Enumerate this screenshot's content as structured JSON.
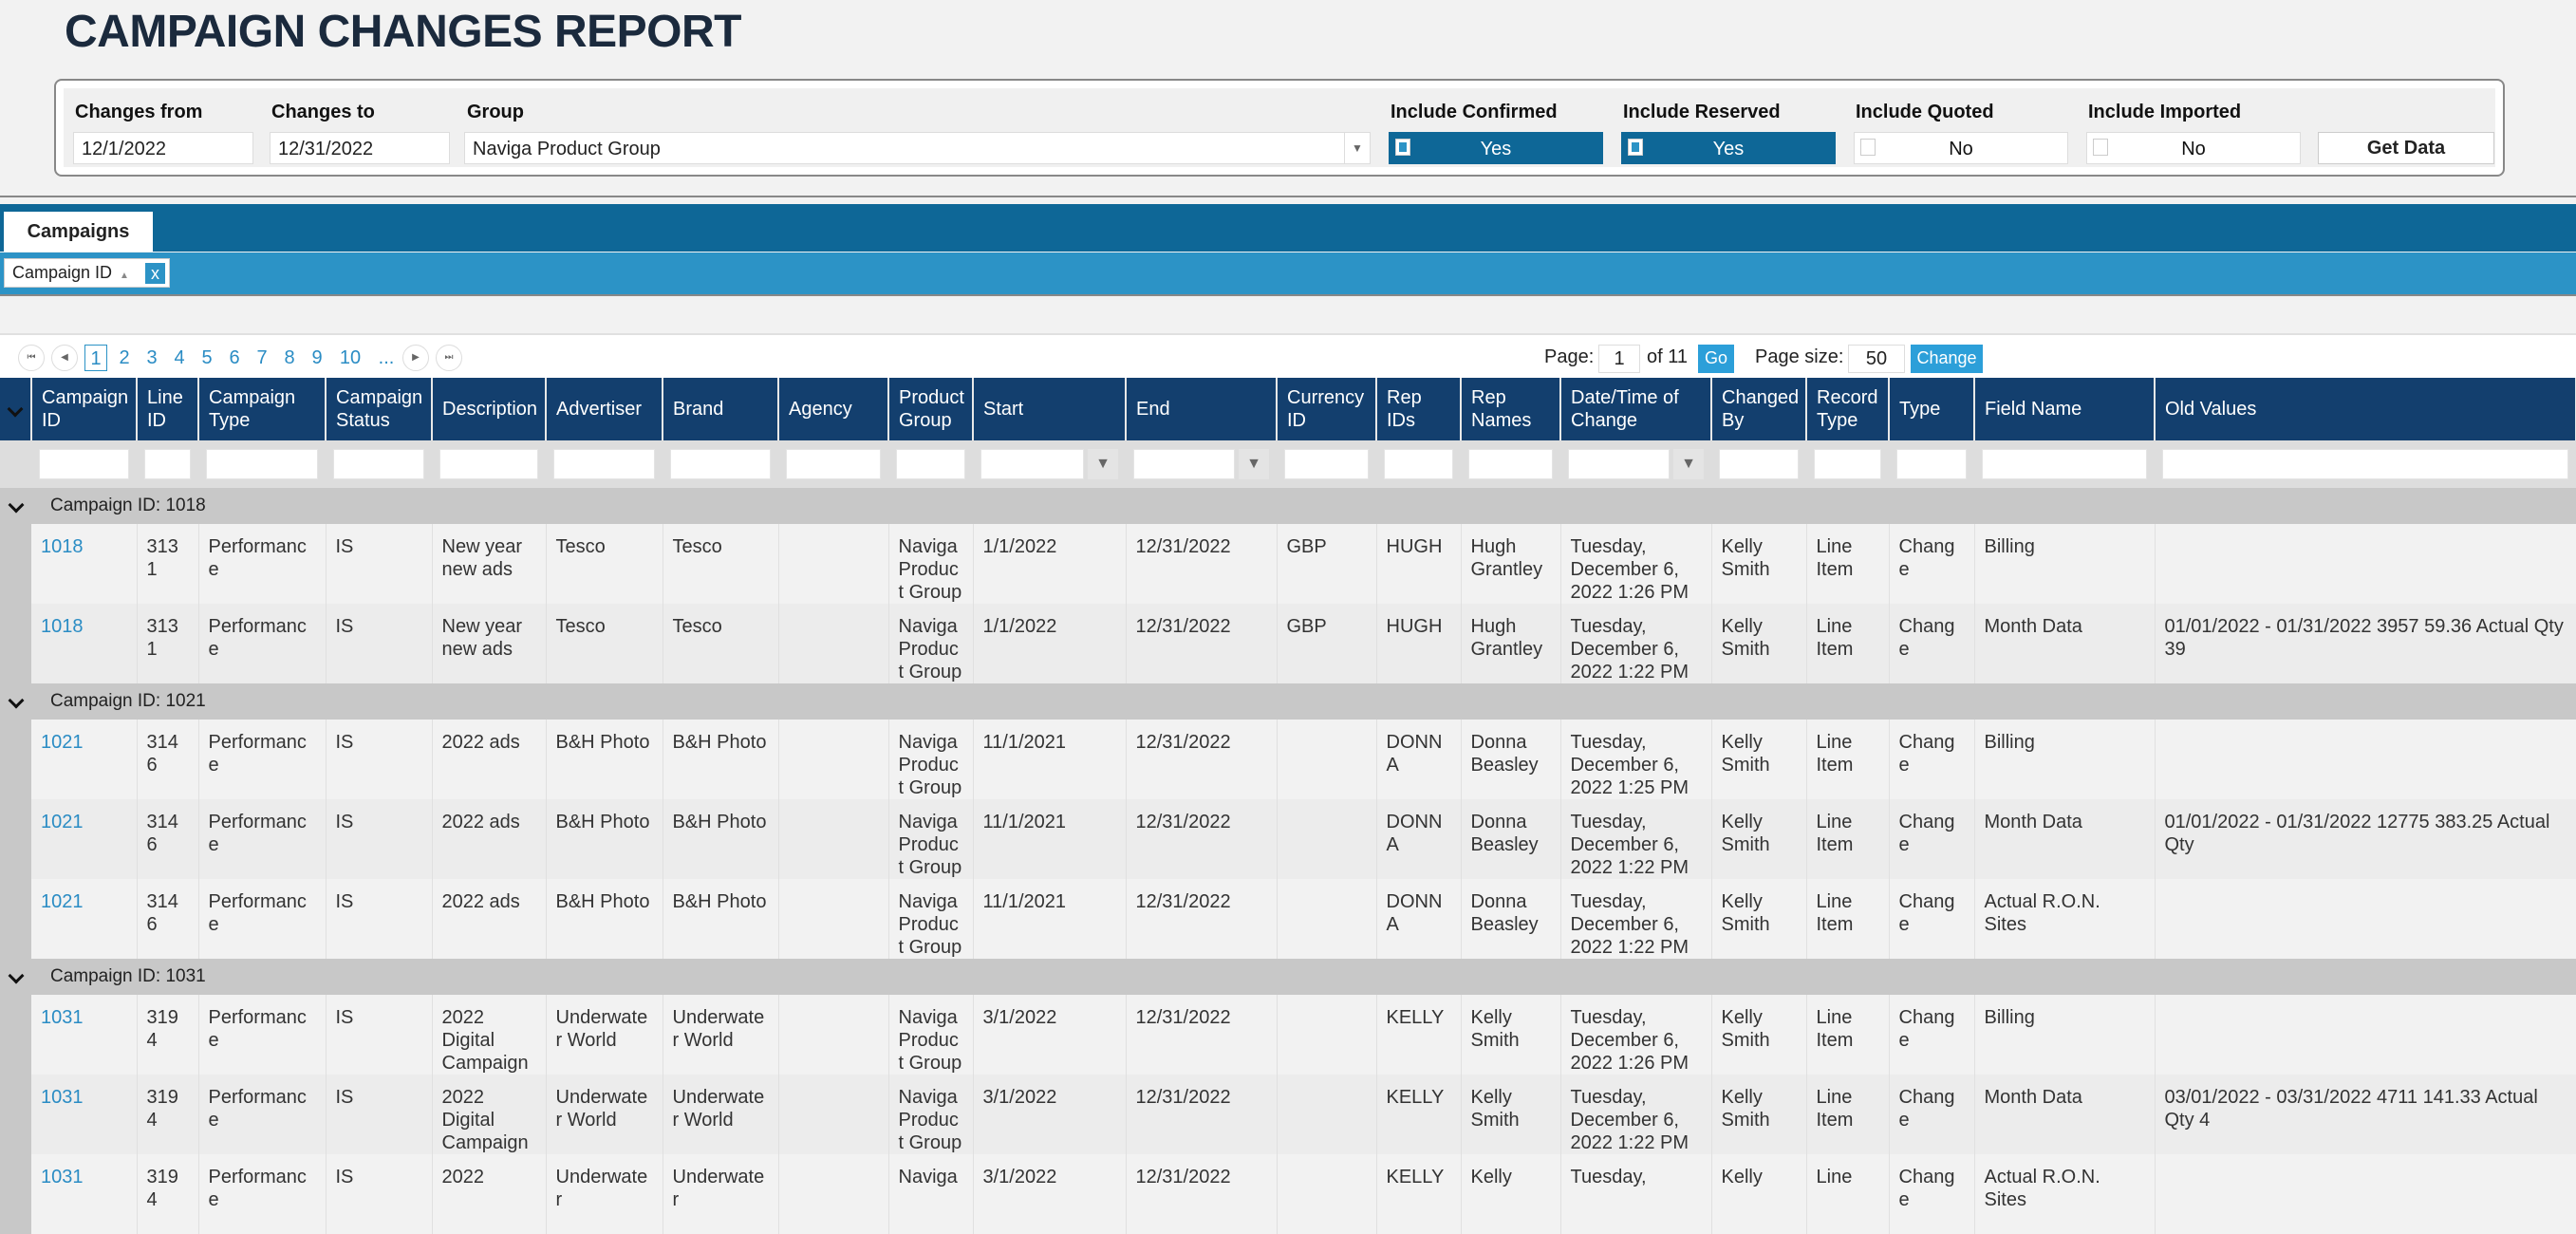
{
  "title": "CAMPAIGN CHANGES REPORT",
  "filters": {
    "changes_from": {
      "label": "Changes from",
      "value": "12/1/2022"
    },
    "changes_to": {
      "label": "Changes to",
      "value": "12/31/2022"
    },
    "group": {
      "label": "Group",
      "value": "Naviga Product Group"
    },
    "include_confirmed": {
      "label": "Include Confirmed",
      "value": "Yes",
      "checked": true
    },
    "include_reserved": {
      "label": "Include Reserved",
      "value": "Yes",
      "checked": true
    },
    "include_quoted": {
      "label": "Include Quoted",
      "value": "No",
      "checked": false
    },
    "include_imported": {
      "label": "Include Imported",
      "value": "No",
      "checked": false
    },
    "get_data_label": "Get Data"
  },
  "tabs": [
    {
      "label": "Campaigns",
      "active": true
    }
  ],
  "grouping": {
    "chip_label": "Campaign ID",
    "remove_label": "x"
  },
  "pager": {
    "pages": [
      "1",
      "2",
      "3",
      "4",
      "5",
      "6",
      "7",
      "8",
      "9",
      "10",
      "..."
    ],
    "current_page": "1",
    "page_label": "Page:",
    "page_value": "1",
    "of_label": "of 11",
    "go_label": "Go",
    "page_size_label": "Page size:",
    "page_size_value": "50",
    "change_label": "Change"
  },
  "colors": {
    "header": "#133f6e",
    "tab_bar": "#0e6797",
    "group_bar": "#2c93c6",
    "link": "#2a8cc4"
  },
  "columns": [
    "Campaign ID",
    "Line ID",
    "Campaign Type",
    "Campaign Status",
    "Description",
    "Advertiser",
    "Brand",
    "Agency",
    "Product Group",
    "Start",
    "End",
    "Currency ID",
    "Rep IDs",
    "Rep Names",
    "Date/Time of Change",
    "Changed By",
    "Record Type",
    "Type",
    "Field Name",
    "Old Values"
  ],
  "groups": [
    {
      "label": "Campaign ID: 1018",
      "rows": [
        [
          "1018",
          "3131",
          "Performance",
          "IS",
          "New year new ads",
          "Tesco",
          "Tesco",
          "",
          "Naviga Product Group",
          "1/1/2022",
          "12/31/2022",
          "GBP",
          "HUGH",
          "Hugh Grantley",
          "Tuesday, December 6, 2022 1:26 PM",
          "Kelly Smith",
          "Line Item",
          "Change",
          "Billing",
          ""
        ],
        [
          "1018",
          "3131",
          "Performance",
          "IS",
          "New year new ads",
          "Tesco",
          "Tesco",
          "",
          "Naviga Product Group",
          "1/1/2022",
          "12/31/2022",
          "GBP",
          "HUGH",
          "Hugh Grantley",
          "Tuesday, December 6, 2022 1:22 PM",
          "Kelly Smith",
          "Line Item",
          "Change",
          "Month Data",
          "01/01/2022 - 01/31/2022 3957 59.36 Actual Qty 39"
        ]
      ]
    },
    {
      "label": "Campaign ID: 1021",
      "rows": [
        [
          "1021",
          "3146",
          "Performance",
          "IS",
          "2022 ads",
          "B&H Photo",
          "B&H Photo",
          "",
          "Naviga Product Group",
          "11/1/2021",
          "12/31/2022",
          "",
          "DONNA",
          "Donna Beasley",
          "Tuesday, December 6, 2022 1:25 PM",
          "Kelly Smith",
          "Line Item",
          "Change",
          "Billing",
          ""
        ],
        [
          "1021",
          "3146",
          "Performance",
          "IS",
          "2022 ads",
          "B&H Photo",
          "B&H Photo",
          "",
          "Naviga Product Group",
          "11/1/2021",
          "12/31/2022",
          "",
          "DONNA",
          "Donna Beasley",
          "Tuesday, December 6, 2022 1:22 PM",
          "Kelly Smith",
          "Line Item",
          "Change",
          "Month Data",
          "01/01/2022 - 01/31/2022 12775 383.25 Actual Qty"
        ],
        [
          "1021",
          "3146",
          "Performance",
          "IS",
          "2022 ads",
          "B&H Photo",
          "B&H Photo",
          "",
          "Naviga Product Group",
          "11/1/2021",
          "12/31/2022",
          "",
          "DONNA",
          "Donna Beasley",
          "Tuesday, December 6, 2022 1:22 PM",
          "Kelly Smith",
          "Line Item",
          "Change",
          "Actual R.O.N. Sites",
          ""
        ]
      ]
    },
    {
      "label": "Campaign ID: 1031",
      "rows": [
        [
          "1031",
          "3194",
          "Performance",
          "IS",
          "2022 Digital Campaign",
          "Underwater World",
          "Underwater World",
          "",
          "Naviga Product Group",
          "3/1/2022",
          "12/31/2022",
          "",
          "KELLY",
          "Kelly Smith",
          "Tuesday, December 6, 2022 1:26 PM",
          "Kelly Smith",
          "Line Item",
          "Change",
          "Billing",
          ""
        ],
        [
          "1031",
          "3194",
          "Performance",
          "IS",
          "2022 Digital Campaign",
          "Underwater World",
          "Underwater World",
          "",
          "Naviga Product Group",
          "3/1/2022",
          "12/31/2022",
          "",
          "KELLY",
          "Kelly Smith",
          "Tuesday, December 6, 2022 1:22 PM",
          "Kelly Smith",
          "Line Item",
          "Change",
          "Month Data",
          "03/01/2022 - 03/31/2022 4711 141.33 Actual Qty 4"
        ],
        [
          "1031",
          "3194",
          "Performance",
          "IS",
          "2022",
          "Underwater",
          "Underwater",
          "",
          "Naviga",
          "3/1/2022",
          "12/31/2022",
          "",
          "KELLY",
          "Kelly",
          "Tuesday,",
          "Kelly",
          "Line",
          "Change",
          "Actual R.O.N. Sites",
          ""
        ]
      ]
    }
  ]
}
